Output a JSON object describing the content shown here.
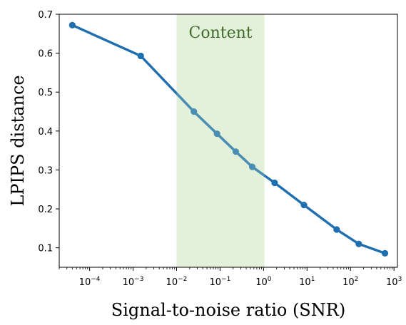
{
  "chart_data": {
    "type": "line",
    "xscale": "log",
    "xlim": [
      2e-05,
      1200
    ],
    "ylim": [
      0.05,
      0.7
    ],
    "xlabel": "Signal-to-noise ratio (SNR)",
    "ylabel": "LPIPS distance",
    "grid": false,
    "legend": "none",
    "x_ticks": [
      {
        "value": 0.0001,
        "base": "10",
        "exp": "−4"
      },
      {
        "value": 0.001,
        "base": "10",
        "exp": "−3"
      },
      {
        "value": 0.01,
        "base": "10",
        "exp": "−2"
      },
      {
        "value": 0.1,
        "base": "10",
        "exp": "−1"
      },
      {
        "value": 1,
        "base": "10",
        "exp": "0"
      },
      {
        "value": 10,
        "base": "10",
        "exp": "1"
      },
      {
        "value": 100,
        "base": "10",
        "exp": "2"
      },
      {
        "value": 1000,
        "base": "10",
        "exp": "3"
      }
    ],
    "y_ticks": [
      {
        "value": 0.1,
        "label": "0.1"
      },
      {
        "value": 0.2,
        "label": "0.2"
      },
      {
        "value": 0.3,
        "label": "0.3"
      },
      {
        "value": 0.4,
        "label": "0.4"
      },
      {
        "value": 0.5,
        "label": "0.5"
      },
      {
        "value": 0.6,
        "label": "0.6"
      },
      {
        "value": 0.7,
        "label": "0.7"
      }
    ],
    "region": {
      "label": "Content",
      "x_start": 0.01,
      "x_end": 1.05,
      "fill_color": "#e3f0da",
      "label_color": "#3f6b2a",
      "line_color_inside": "#4a8fb3"
    },
    "series": [
      {
        "color": "#1f6fb0",
        "x": [
          4e-05,
          0.0015,
          0.025,
          0.085,
          0.23,
          0.55,
          1.8,
          8.5,
          48,
          155,
          620
        ],
        "y": [
          0.672,
          0.593,
          0.45,
          0.393,
          0.347,
          0.308,
          0.267,
          0.21,
          0.147,
          0.11,
          0.086
        ]
      }
    ]
  }
}
